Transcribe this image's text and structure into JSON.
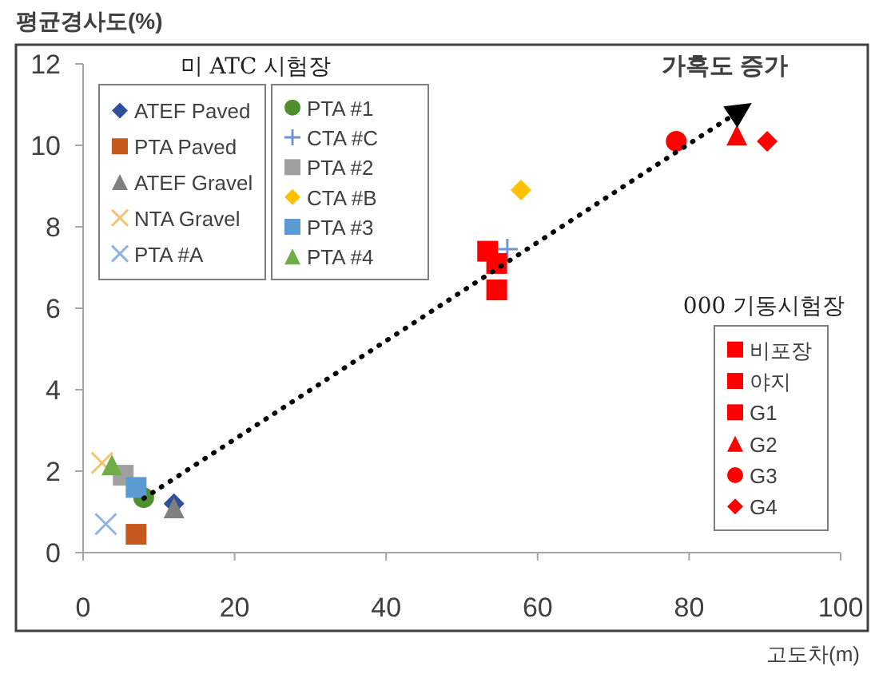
{
  "chart_data": {
    "type": "scatter",
    "ylabel": "평균경사도(%)",
    "xlabel": "고도차(m)",
    "xlim": [
      0,
      100
    ],
    "ylim": [
      0,
      12
    ],
    "xticks": [
      0,
      20,
      40,
      60,
      80,
      100
    ],
    "yticks": [
      0,
      2,
      4,
      6,
      8,
      10,
      12
    ],
    "grid": false,
    "legend": "top left",
    "annotations": [
      "미 ATC 시험장",
      "000 기동시험장",
      "가혹도 증가"
    ],
    "series": [
      {
        "name": "ATEF Paved",
        "color": "#2e4f9a",
        "marker": "diamond",
        "x": [
          12
        ],
        "values": [
          1.2
        ]
      },
      {
        "name": "PTA Paved",
        "color": "#c65a1e",
        "marker": "square",
        "x": [
          7
        ],
        "values": [
          0.45
        ]
      },
      {
        "name": "ATEF Gravel",
        "color": "#808080",
        "marker": "triangle",
        "x": [
          12
        ],
        "values": [
          1.1
        ]
      },
      {
        "name": "NTA Gravel",
        "color": "#f2c46c",
        "marker": "cross",
        "x": [
          2.5
        ],
        "values": [
          2.2
        ]
      },
      {
        "name": "PTA #A",
        "color": "#8fb4e0",
        "marker": "cross",
        "x": [
          3
        ],
        "values": [
          0.7
        ]
      },
      {
        "name": "PTA #1",
        "color": "#4e8f2e",
        "marker": "circle",
        "x": [
          8
        ],
        "values": [
          1.35
        ]
      },
      {
        "name": "CTA #C",
        "color": "#6f94d6",
        "marker": "plus",
        "x": [
          56
        ],
        "values": [
          7.45
        ]
      },
      {
        "name": "PTA #2",
        "color": "#a0a0a0",
        "marker": "square",
        "x": [
          5.3
        ],
        "values": [
          1.9
        ]
      },
      {
        "name": "CTA #B",
        "color": "#ffc000",
        "marker": "diamond",
        "x": [
          57.8
        ],
        "values": [
          8.9
        ]
      },
      {
        "name": "PTA #3",
        "color": "#5b9bd5",
        "marker": "square",
        "x": [
          7
        ],
        "values": [
          1.6
        ]
      },
      {
        "name": "PTA #4",
        "color": "#70ad47",
        "marker": "triangle",
        "x": [
          3.8
        ],
        "values": [
          2.15
        ]
      },
      {
        "name": "비포장",
        "color": "#ff0000",
        "marker": "square",
        "x": [
          53.4
        ],
        "values": [
          7.4
        ]
      },
      {
        "name": "야지",
        "color": "#ff0000",
        "marker": "square",
        "x": [
          54.6
        ],
        "values": [
          6.45
        ]
      },
      {
        "name": "G1",
        "color": "#ff0000",
        "marker": "square",
        "x": [
          54.6
        ],
        "values": [
          7.1
        ]
      },
      {
        "name": "G2",
        "color": "#ff0000",
        "marker": "triangle",
        "x": [
          86.3
        ],
        "values": [
          10.25
        ]
      },
      {
        "name": "G3",
        "color": "#ff0000",
        "marker": "circle",
        "x": [
          78.3
        ],
        "values": [
          10.1
        ]
      },
      {
        "name": "G4",
        "color": "#ff0000",
        "marker": "diamond",
        "x": [
          90.3
        ],
        "values": [
          10.1
        ]
      }
    ]
  }
}
